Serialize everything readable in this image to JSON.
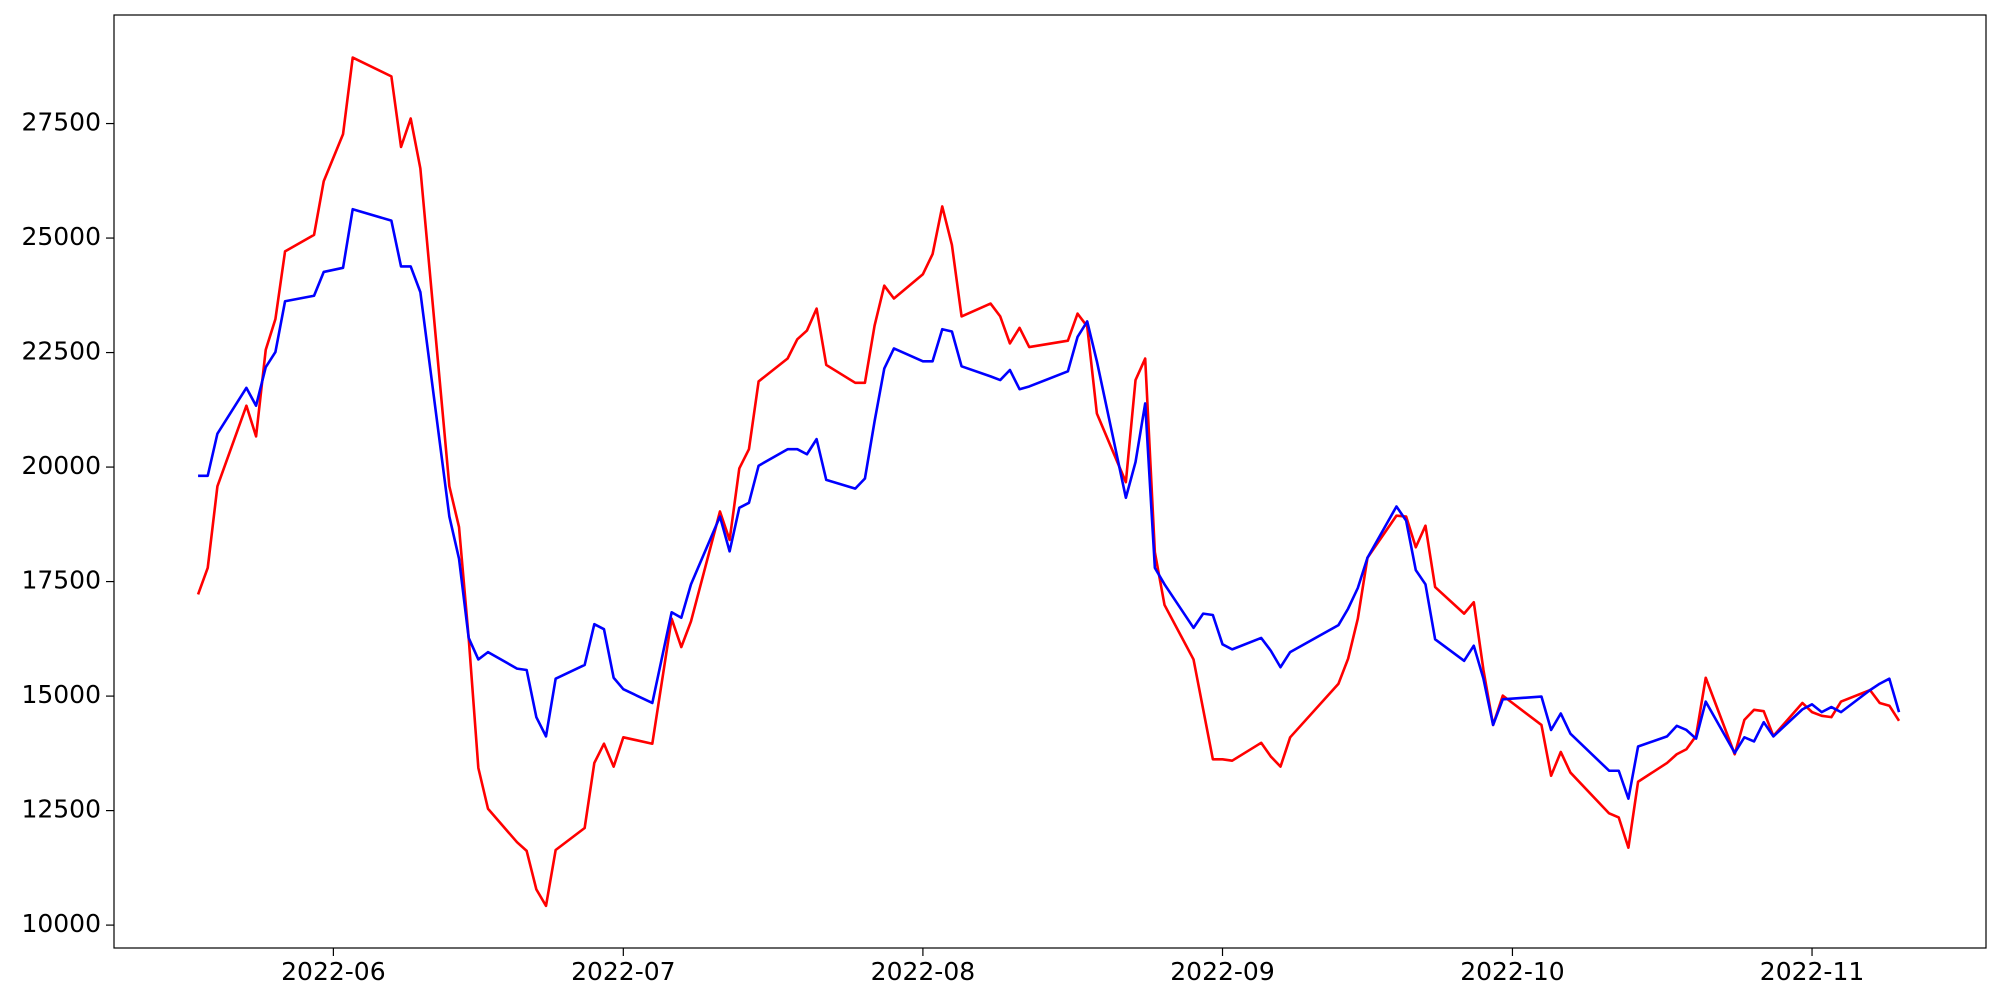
{
  "chart_data": {
    "type": "line",
    "x": [
      138,
      139,
      140,
      143,
      144,
      145,
      146,
      147,
      150,
      151,
      153,
      154,
      158,
      159,
      160,
      161,
      164,
      165,
      166,
      167,
      168,
      171,
      172,
      173,
      174,
      175,
      178,
      179,
      180,
      181,
      182,
      185,
      187,
      188,
      189,
      192,
      193,
      194,
      195,
      196,
      199,
      200,
      201,
      202,
      203,
      206,
      207,
      208,
      209,
      210,
      213,
      214,
      215,
      216,
      217,
      220,
      221,
      222,
      223,
      224,
      228,
      229,
      230,
      231,
      234,
      235,
      236,
      237,
      238,
      241,
      242,
      243,
      244,
      245,
      248,
      249,
      250,
      251,
      256,
      257,
      258,
      259,
      262,
      263,
      264,
      265,
      266,
      269,
      270,
      271,
      272,
      273,
      277,
      278,
      279,
      280,
      284,
      285,
      286,
      287,
      290,
      291,
      292,
      293,
      294,
      297,
      298,
      299,
      300,
      301,
      304,
      305,
      306,
      307,
      308,
      311,
      312,
      313,
      314
    ],
    "series": [
      {
        "color": "#ff0000",
        "values": [
          17220,
          17800,
          19580,
          21340,
          20670,
          22560,
          23230,
          24710,
          25070,
          26240,
          27270,
          28940,
          28530,
          26990,
          27610,
          26520,
          19580,
          18690,
          16270,
          13430,
          12540,
          11810,
          11620,
          10780,
          10420,
          11640,
          12120,
          13540,
          13960,
          13460,
          14100,
          13960,
          16690,
          16070,
          16630,
          19030,
          18410,
          19970,
          20390,
          21870,
          22370,
          22790,
          22980,
          23460,
          22230,
          21840,
          21840,
          23090,
          23960,
          23680,
          24210,
          24650,
          25690,
          24850,
          23290,
          23570,
          23290,
          22700,
          23040,
          22620,
          22760,
          23350,
          23070,
          21170,
          19670,
          21900,
          22370,
          18140,
          16990,
          15800,
          14710,
          13620,
          13620,
          13590,
          13980,
          13680,
          13460,
          14100,
          15270,
          15820,
          16690,
          18020,
          18940,
          18920,
          18250,
          18720,
          17380,
          16800,
          17050,
          15570,
          14370,
          15010,
          14370,
          13260,
          13780,
          13330,
          12440,
          12350,
          11690,
          13130,
          13540,
          13730,
          13840,
          14130,
          15400,
          13730,
          14480,
          14700,
          14670,
          14130,
          14850,
          14650,
          14570,
          14540,
          14880,
          15130,
          14850,
          14790,
          14460
        ]
      },
      {
        "color": "#0000ff",
        "values": [
          19810,
          19810,
          20730,
          21730,
          21340,
          22180,
          22510,
          23620,
          23740,
          24260,
          24350,
          25630,
          25380,
          24380,
          24380,
          23820,
          18920,
          18000,
          16270,
          15800,
          15960,
          15600,
          15570,
          14540,
          14120,
          15380,
          15680,
          16570,
          16460,
          15400,
          15150,
          14850,
          16830,
          16710,
          17440,
          18920,
          18160,
          19110,
          19220,
          20030,
          20390,
          20390,
          20280,
          20610,
          19720,
          19530,
          19750,
          21000,
          22150,
          22590,
          22310,
          22310,
          23010,
          22960,
          22200,
          21980,
          21900,
          22120,
          21700,
          21760,
          22090,
          22840,
          23180,
          22310,
          19330,
          20110,
          21390,
          17800,
          17440,
          16490,
          16800,
          16770,
          16130,
          16020,
          16270,
          15990,
          15630,
          15960,
          16550,
          16910,
          17360,
          18020,
          19140,
          18830,
          17750,
          17440,
          16240,
          15770,
          16100,
          15380,
          14370,
          14930,
          14990,
          14260,
          14620,
          14180,
          13370,
          13370,
          12760,
          13900,
          14120,
          14350,
          14260,
          14070,
          14880,
          13760,
          14100,
          14010,
          14430,
          14120,
          14710,
          14820,
          14650,
          14760,
          14650,
          15130,
          15270,
          15380,
          14650
        ]
      }
    ],
    "xlim": [
      129.3,
      323
    ],
    "xticks": [
      {
        "value": 152,
        "label": "2022-06"
      },
      {
        "value": 182,
        "label": "2022-07"
      },
      {
        "value": 213,
        "label": "2022-08"
      },
      {
        "value": 244,
        "label": "2022-09"
      },
      {
        "value": 274,
        "label": "2022-10"
      },
      {
        "value": 305,
        "label": "2022-11"
      }
    ],
    "ylim": [
      9500,
      29870
    ],
    "yticks": [
      10000,
      12500,
      15000,
      17500,
      20000,
      22500,
      25000,
      27500
    ],
    "grid": false
  }
}
